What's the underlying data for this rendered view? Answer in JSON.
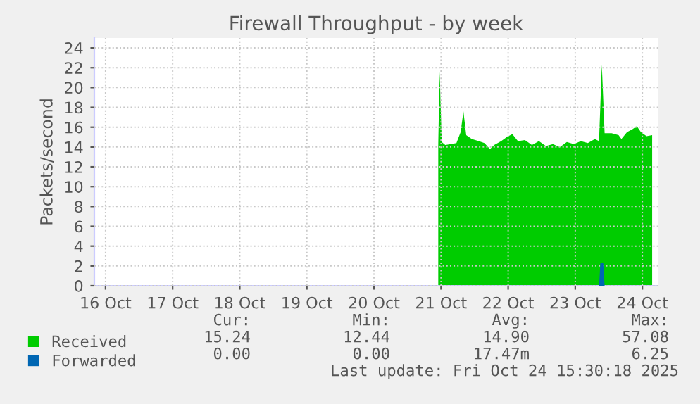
{
  "chart_data": {
    "type": "area",
    "title": "Firewall Throughput - by week",
    "ylabel": "Packets/second",
    "xlim": [
      "2025-10-15T20:00",
      "2025-10-24T05:30"
    ],
    "xticks": [
      {
        "value": "2025-10-16",
        "label": "16 Oct"
      },
      {
        "value": "2025-10-17",
        "label": "17 Oct"
      },
      {
        "value": "2025-10-18",
        "label": "18 Oct"
      },
      {
        "value": "2025-10-19",
        "label": "19 Oct"
      },
      {
        "value": "2025-10-20",
        "label": "20 Oct"
      },
      {
        "value": "2025-10-21",
        "label": "21 Oct"
      },
      {
        "value": "2025-10-22",
        "label": "22 Oct"
      },
      {
        "value": "2025-10-23",
        "label": "23 Oct"
      },
      {
        "value": "2025-10-24",
        "label": "24 Oct"
      }
    ],
    "ylim": [
      0,
      25
    ],
    "yticks": [
      0,
      2,
      4,
      6,
      8,
      10,
      12,
      14,
      16,
      18,
      20,
      22,
      24
    ],
    "grid": true,
    "legend": "bottom left",
    "series": [
      {
        "name": "Received",
        "color": "#00cc00",
        "x": [
          "2025-10-20T23:00",
          "2025-10-20T23:30",
          "2025-10-21T00:15",
          "2025-10-21T01:30",
          "2025-10-21T03:30",
          "2025-10-21T05:30",
          "2025-10-21T07:00",
          "2025-10-21T08:00",
          "2025-10-21T09:00",
          "2025-10-21T11:00",
          "2025-10-21T13:30",
          "2025-10-21T15:30",
          "2025-10-21T17:30",
          "2025-10-21T19:00",
          "2025-10-21T21:30",
          "2025-10-21T23:30",
          "2025-10-22T01:30",
          "2025-10-22T03:30",
          "2025-10-22T06:00",
          "2025-10-22T08:30",
          "2025-10-22T11:00",
          "2025-10-22T13:30",
          "2025-10-22T16:00",
          "2025-10-22T18:30",
          "2025-10-22T21:00",
          "2025-10-22T23:30",
          "2025-10-23T02:00",
          "2025-10-23T04:30",
          "2025-10-23T07:00",
          "2025-10-23T08:30",
          "2025-10-23T09:30",
          "2025-10-23T10:30",
          "2025-10-23T13:00",
          "2025-10-23T15:30",
          "2025-10-23T16:30",
          "2025-10-23T18:30",
          "2025-10-23T20:30",
          "2025-10-23T22:00",
          "2025-10-23T23:30",
          "2025-10-24T01:30",
          "2025-10-24T03:30"
        ],
        "values": [
          14.3,
          21.6,
          14.5,
          14.2,
          14.3,
          14.4,
          15.5,
          17.6,
          15.2,
          14.8,
          14.6,
          14.4,
          13.8,
          14.2,
          14.6,
          15.0,
          15.3,
          14.6,
          14.7,
          14.2,
          14.6,
          14.1,
          14.3,
          14.0,
          14.5,
          14.3,
          14.6,
          14.4,
          14.8,
          14.6,
          22.3,
          15.4,
          15.4,
          15.2,
          14.8,
          15.5,
          15.8,
          16.1,
          15.5,
          15.1,
          15.2
        ]
      },
      {
        "name": "Forwarded",
        "color": "#0066b3",
        "x": [
          "2025-10-23T08:30",
          "2025-10-23T09:00",
          "2025-10-23T10:00",
          "2025-10-23T10:30"
        ],
        "values": [
          0,
          2.3,
          2.3,
          0
        ]
      }
    ],
    "annotations": [
      "Cur:",
      "Min:",
      "Avg:",
      "Max:",
      "15.24",
      "12.44",
      "14.90",
      "57.08",
      "0.00",
      "0.00",
      "17.47m",
      "6.25",
      "Last update: Fri Oct 24 15:30:18 2025"
    ]
  }
}
